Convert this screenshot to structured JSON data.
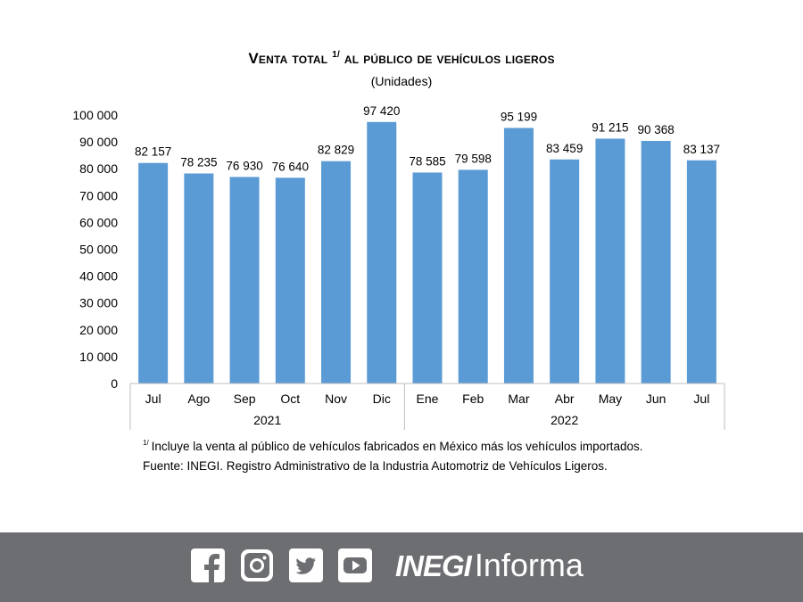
{
  "chart_data": {
    "type": "bar",
    "title_main": "Venta total",
    "title_sup": "1/",
    "title_rest": " al público de vehículos ligeros",
    "subtitle": "(Unidades)",
    "categories": [
      "Jul",
      "Ago",
      "Sep",
      "Oct",
      "Nov",
      "Dic",
      "Ene",
      "Feb",
      "Mar",
      "Abr",
      "May",
      "Jun",
      "Jul"
    ],
    "values": [
      82157,
      78235,
      76930,
      76640,
      82829,
      97420,
      78585,
      79598,
      95199,
      83459,
      91215,
      90368,
      83137
    ],
    "value_labels": [
      "82 157",
      "78 235",
      "76 930",
      "76 640",
      "82 829",
      "97 420",
      "78 585",
      "79 598",
      "95 199",
      "83 459",
      "91 215",
      "90 368",
      "83 137"
    ],
    "year_groups": [
      {
        "label": "2021",
        "start": 0,
        "end": 5
      },
      {
        "label": "2022",
        "start": 6,
        "end": 12
      }
    ],
    "yticks": [
      "0",
      "10 000",
      "20 000",
      "30 000",
      "40 000",
      "50 000",
      "60 000",
      "70 000",
      "80 000",
      "90 000",
      "100 000"
    ],
    "ylim": [
      0,
      100000
    ],
    "grid": false,
    "bar_color": "#5b9bd5"
  },
  "notes": {
    "footnote_mark": "1/",
    "footnote_text": "Incluye la venta al público de vehículos fabricados en México más los vehículos importados.",
    "source": "Fuente: INEGI. Registro Administrativo de la Industria Automotriz de Vehículos Ligeros."
  },
  "footer": {
    "background": "#6d6e71",
    "icons": [
      "facebook-icon",
      "instagram-icon",
      "twitter-icon",
      "youtube-icon"
    ],
    "brand_bold": "INEGI",
    "brand_light": "Informa"
  }
}
